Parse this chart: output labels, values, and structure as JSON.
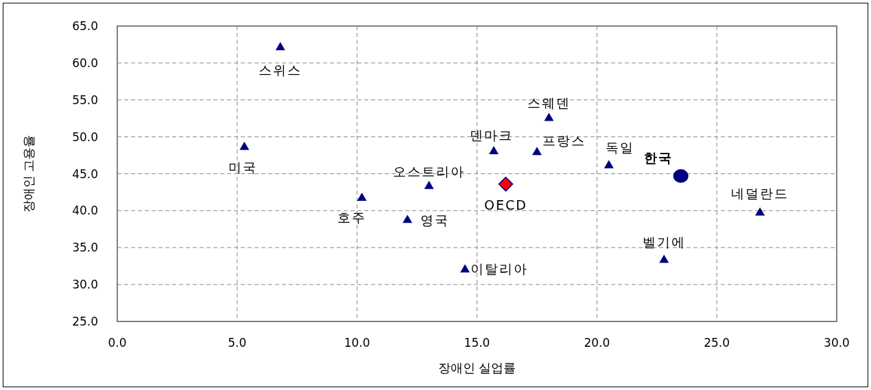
{
  "chart_data": {
    "type": "scatter",
    "xlabel": "장애인 실업률",
    "ylabel": "장애인 고용율",
    "grid": true,
    "xlim": [
      0,
      30
    ],
    "ylim": [
      25,
      65
    ],
    "xticks": [
      {
        "value": 0,
        "label": "0.0"
      },
      {
        "value": 5,
        "label": "5.0"
      },
      {
        "value": 10,
        "label": "10.0"
      },
      {
        "value": 15,
        "label": "15.0"
      },
      {
        "value": 20,
        "label": "20.0"
      },
      {
        "value": 25,
        "label": "25.0"
      },
      {
        "value": 30,
        "label": "30.0"
      }
    ],
    "yticks": [
      {
        "value": 25,
        "label": "25.0"
      },
      {
        "value": 30,
        "label": "30.0"
      },
      {
        "value": 35,
        "label": "35.0"
      },
      {
        "value": 40,
        "label": "40.0"
      },
      {
        "value": 45,
        "label": "45.0"
      },
      {
        "value": 50,
        "label": "50.0"
      },
      {
        "value": 55,
        "label": "55.0"
      },
      {
        "value": 60,
        "label": "60.0"
      },
      {
        "value": 65,
        "label": "65.0"
      }
    ],
    "series": [
      {
        "name": "스위스",
        "color": "#000080",
        "marker": "triangle",
        "x": [
          6.8
        ],
        "values": [
          62.2
        ]
      },
      {
        "name": "미국",
        "color": "#000080",
        "marker": "triangle",
        "x": [
          5.3
        ],
        "values": [
          48.7
        ]
      },
      {
        "name": "호주",
        "color": "#000080",
        "marker": "triangle",
        "x": [
          10.2
        ],
        "values": [
          41.8
        ]
      },
      {
        "name": "영국",
        "color": "#000080",
        "marker": "triangle",
        "x": [
          12.1
        ],
        "values": [
          38.8
        ]
      },
      {
        "name": "오스트리아",
        "color": "#000080",
        "marker": "triangle",
        "x": [
          13.0
        ],
        "values": [
          43.4
        ]
      },
      {
        "name": "이탈리아",
        "color": "#000080",
        "marker": "triangle",
        "x": [
          14.5
        ],
        "values": [
          32.1
        ]
      },
      {
        "name": "덴마크",
        "color": "#000080",
        "marker": "triangle",
        "x": [
          15.7
        ],
        "values": [
          48.1
        ]
      },
      {
        "name": "OECD",
        "color": "#ff0000",
        "marker": "diamond",
        "x": [
          16.2
        ],
        "values": [
          43.6
        ]
      },
      {
        "name": "프랑스",
        "color": "#000080",
        "marker": "triangle",
        "x": [
          17.5
        ],
        "values": [
          48.0
        ]
      },
      {
        "name": "스웨덴",
        "color": "#000080",
        "marker": "triangle",
        "x": [
          18.0
        ],
        "values": [
          52.6
        ]
      },
      {
        "name": "독일",
        "color": "#000080",
        "marker": "triangle",
        "x": [
          20.5
        ],
        "values": [
          46.2
        ]
      },
      {
        "name": "한국",
        "color": "#000080",
        "marker": "circle",
        "x": [
          23.5
        ],
        "values": [
          44.7
        ]
      },
      {
        "name": "벨기에",
        "color": "#000080",
        "marker": "triangle",
        "x": [
          22.8
        ],
        "values": [
          33.4
        ]
      },
      {
        "name": "네덜란드",
        "color": "#000080",
        "marker": "triangle",
        "x": [
          26.8
        ],
        "values": [
          39.8
        ]
      }
    ]
  }
}
